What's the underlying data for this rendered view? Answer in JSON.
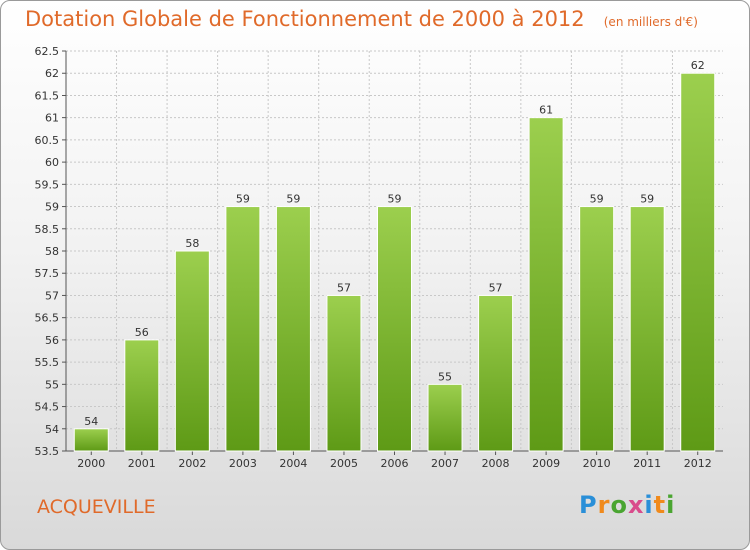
{
  "title": "Dotation Globale de Fonctionnement de 2000 à 2012",
  "subtitle": "(en milliers d'€)",
  "commune": "ACQUEVILLE",
  "logo": {
    "text": "Proxiti",
    "letter_colors": [
      "#2a8fd8",
      "#f08a1c",
      "#4aa531",
      "#d94c8c",
      "#2a8fd8",
      "#f08a1c",
      "#4aa531"
    ]
  },
  "colors": {
    "title": "#e06a2a",
    "bar_light": "#9ccf4e",
    "bar_dark": "#5e9a16"
  },
  "chart_data": {
    "type": "bar",
    "categories": [
      "2000",
      "2001",
      "2002",
      "2003",
      "2004",
      "2005",
      "2006",
      "2007",
      "2008",
      "2009",
      "2010",
      "2011",
      "2012"
    ],
    "values": [
      54,
      56,
      58,
      59,
      59,
      57,
      59,
      55,
      57,
      61,
      59,
      59,
      62
    ],
    "data_labels": [
      "54",
      "56",
      "58",
      "59",
      "59",
      "57",
      "59",
      "55",
      "57",
      "61",
      "59",
      "59",
      "62"
    ],
    "ylim": [
      53.5,
      62.5
    ],
    "yticks": [
      53.5,
      54,
      54.5,
      55,
      55.5,
      56,
      56.5,
      57,
      57.5,
      58,
      58.5,
      59,
      59.5,
      60,
      60.5,
      61,
      61.5,
      62,
      62.5
    ],
    "ytick_labels": [
      "53.5",
      "54",
      "54.5",
      "55",
      "55.5",
      "56",
      "56.5",
      "57",
      "57.5",
      "58",
      "58.5",
      "59",
      "59.5",
      "60",
      "60.5",
      "61",
      "61.5",
      "62",
      "62.5"
    ],
    "grid": true,
    "xlabel": "",
    "ylabel": ""
  }
}
